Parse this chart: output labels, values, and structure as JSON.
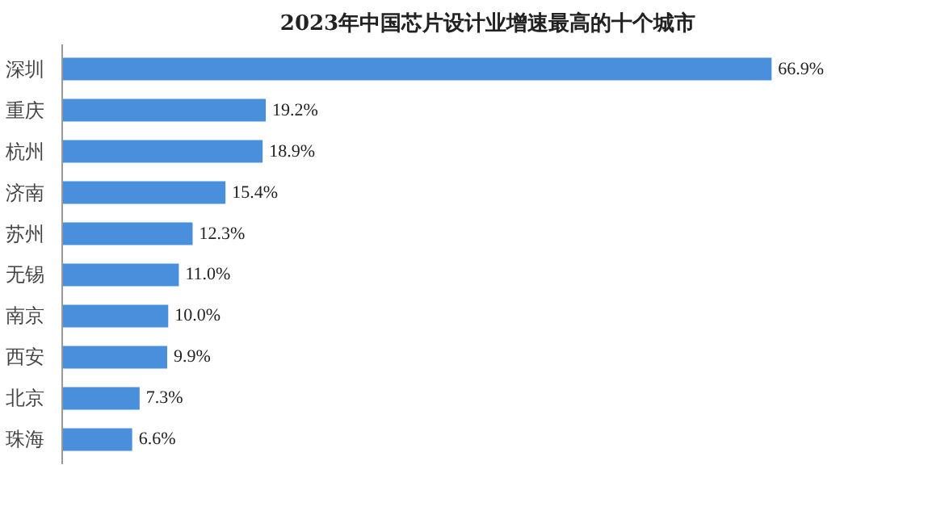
{
  "chart_data": {
    "type": "bar",
    "orientation": "horizontal",
    "title": "2023年中国芯片设计业增速最高的十个城市",
    "categories": [
      "深圳",
      "重庆",
      "杭州",
      "济南",
      "苏州",
      "无锡",
      "南京",
      "西安",
      "北京",
      "珠海"
    ],
    "values": [
      66.9,
      19.2,
      18.9,
      15.4,
      12.3,
      11.0,
      10.0,
      9.9,
      7.3,
      6.6
    ],
    "value_labels": [
      "66.9%",
      "19.2%",
      "18.9%",
      "15.4%",
      "12.3%",
      "11.0%",
      "10.0%",
      "9.9%",
      "7.3%",
      "6.6%"
    ],
    "color": "#4a8fdc"
  }
}
